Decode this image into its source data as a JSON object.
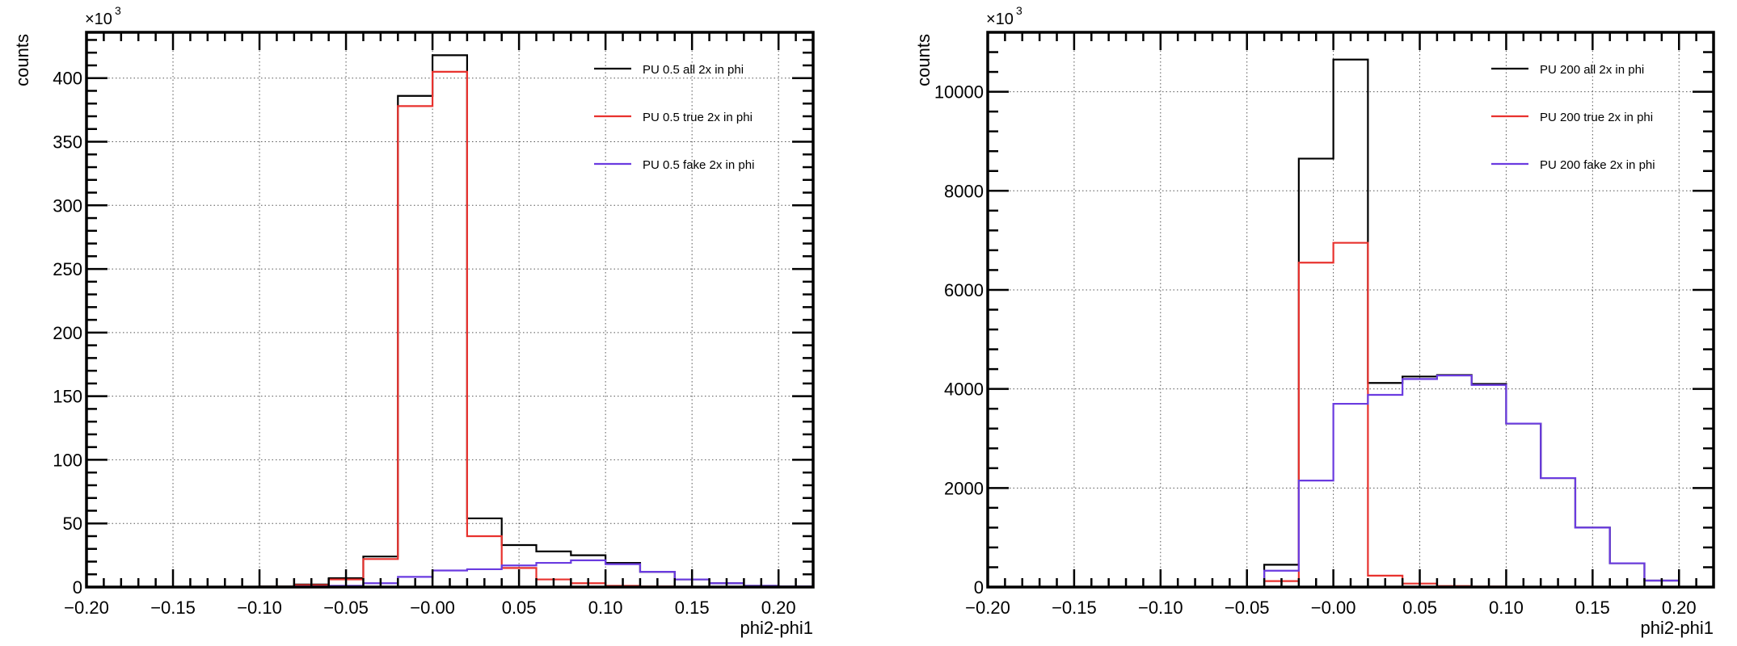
{
  "chart_data": [
    {
      "type": "histogram-step",
      "xlabel": "phi2-phi1",
      "ylabel": "counts",
      "y_multiplier_label": "×10",
      "y_multiplier_exp": "3",
      "xlim": [
        -0.2,
        0.22
      ],
      "ylim": [
        0,
        436
      ],
      "x_ticks": [
        -0.2,
        -0.15,
        -0.1,
        -0.05,
        0.0,
        0.05,
        0.1,
        0.15,
        0.2
      ],
      "x_tick_labels": [
        "−0.20",
        "−0.15",
        "−0.10",
        "−0.05",
        "−0.00",
        "0.05",
        "0.10",
        "0.15",
        "0.20"
      ],
      "y_ticks": [
        0,
        50,
        100,
        150,
        200,
        250,
        300,
        350,
        400
      ],
      "y_tick_labels": [
        "0",
        "50",
        "100",
        "150",
        "200",
        "250",
        "300",
        "350",
        "400"
      ],
      "grid": true,
      "legend_position": "top-right",
      "bin_edges": [
        -0.2,
        -0.18,
        -0.16,
        -0.14,
        -0.12,
        -0.1,
        -0.08,
        -0.06,
        -0.04,
        -0.02,
        0.0,
        0.02,
        0.04,
        0.06,
        0.08,
        0.1,
        0.12,
        0.14,
        0.16,
        0.18,
        0.2,
        0.22
      ],
      "series": [
        {
          "name": "PU 0.5 all 2x in phi",
          "color": "#000000",
          "values": [
            0,
            0,
            0,
            0,
            0,
            0.5,
            2,
            7,
            24,
            386,
            418,
            54,
            33,
            28,
            25,
            19,
            12,
            6,
            3,
            1,
            0.5
          ]
        },
        {
          "name": "PU 0.5 true 2x in phi",
          "color": "#e8322e",
          "values": [
            0,
            0,
            0,
            0,
            0,
            0.3,
            1.5,
            6,
            22,
            378,
            405,
            40,
            15,
            6,
            3,
            1,
            0.5,
            0.2,
            0,
            0,
            0
          ]
        },
        {
          "name": "PU 0.5 fake 2x in phi",
          "color": "#6a3be0",
          "values": [
            0,
            0,
            0,
            0,
            0,
            0.2,
            0.5,
            1,
            3,
            8,
            13,
            14,
            17,
            19,
            21,
            18,
            12,
            6,
            3,
            1,
            0.5
          ]
        }
      ]
    },
    {
      "type": "histogram-step",
      "xlabel": "phi2-phi1",
      "ylabel": "counts",
      "y_multiplier_label": "×10",
      "y_multiplier_exp": "3",
      "xlim": [
        -0.2,
        0.22
      ],
      "ylim": [
        0,
        11200
      ],
      "x_ticks": [
        -0.2,
        -0.15,
        -0.1,
        -0.05,
        0.0,
        0.05,
        0.1,
        0.15,
        0.2
      ],
      "x_tick_labels": [
        "−0.20",
        "−0.15",
        "−0.10",
        "−0.05",
        "−0.00",
        "0.05",
        "0.10",
        "0.15",
        "0.20"
      ],
      "y_ticks": [
        0,
        2000,
        4000,
        6000,
        8000,
        10000
      ],
      "y_tick_labels": [
        "0",
        "2000",
        "4000",
        "6000",
        "8000",
        "10000"
      ],
      "grid": true,
      "legend_position": "top-right",
      "bin_edges": [
        -0.2,
        -0.18,
        -0.16,
        -0.14,
        -0.12,
        -0.1,
        -0.08,
        -0.06,
        -0.04,
        -0.02,
        0.0,
        0.02,
        0.04,
        0.06,
        0.08,
        0.1,
        0.12,
        0.14,
        0.16,
        0.18,
        0.2,
        0.22
      ],
      "series": [
        {
          "name": "PU 200 all 2x in phi",
          "color": "#000000",
          "values": [
            0,
            0,
            0,
            0,
            0,
            0,
            0,
            0,
            450,
            8650,
            10650,
            4120,
            4250,
            4280,
            4100,
            3300,
            2200,
            1200,
            480,
            130,
            0
          ]
        },
        {
          "name": "PU 200 true 2x in phi",
          "color": "#e8322e",
          "values": [
            0,
            0,
            0,
            0,
            0,
            0,
            0,
            0,
            120,
            6550,
            6950,
            230,
            70,
            20,
            10,
            5,
            0,
            0,
            0,
            0,
            0
          ]
        },
        {
          "name": "PU 200 fake 2x in phi",
          "color": "#6a3be0",
          "values": [
            0,
            0,
            0,
            0,
            0,
            0,
            0,
            0,
            330,
            2150,
            3700,
            3880,
            4200,
            4270,
            4080,
            3300,
            2200,
            1200,
            480,
            130,
            0
          ]
        }
      ]
    }
  ]
}
